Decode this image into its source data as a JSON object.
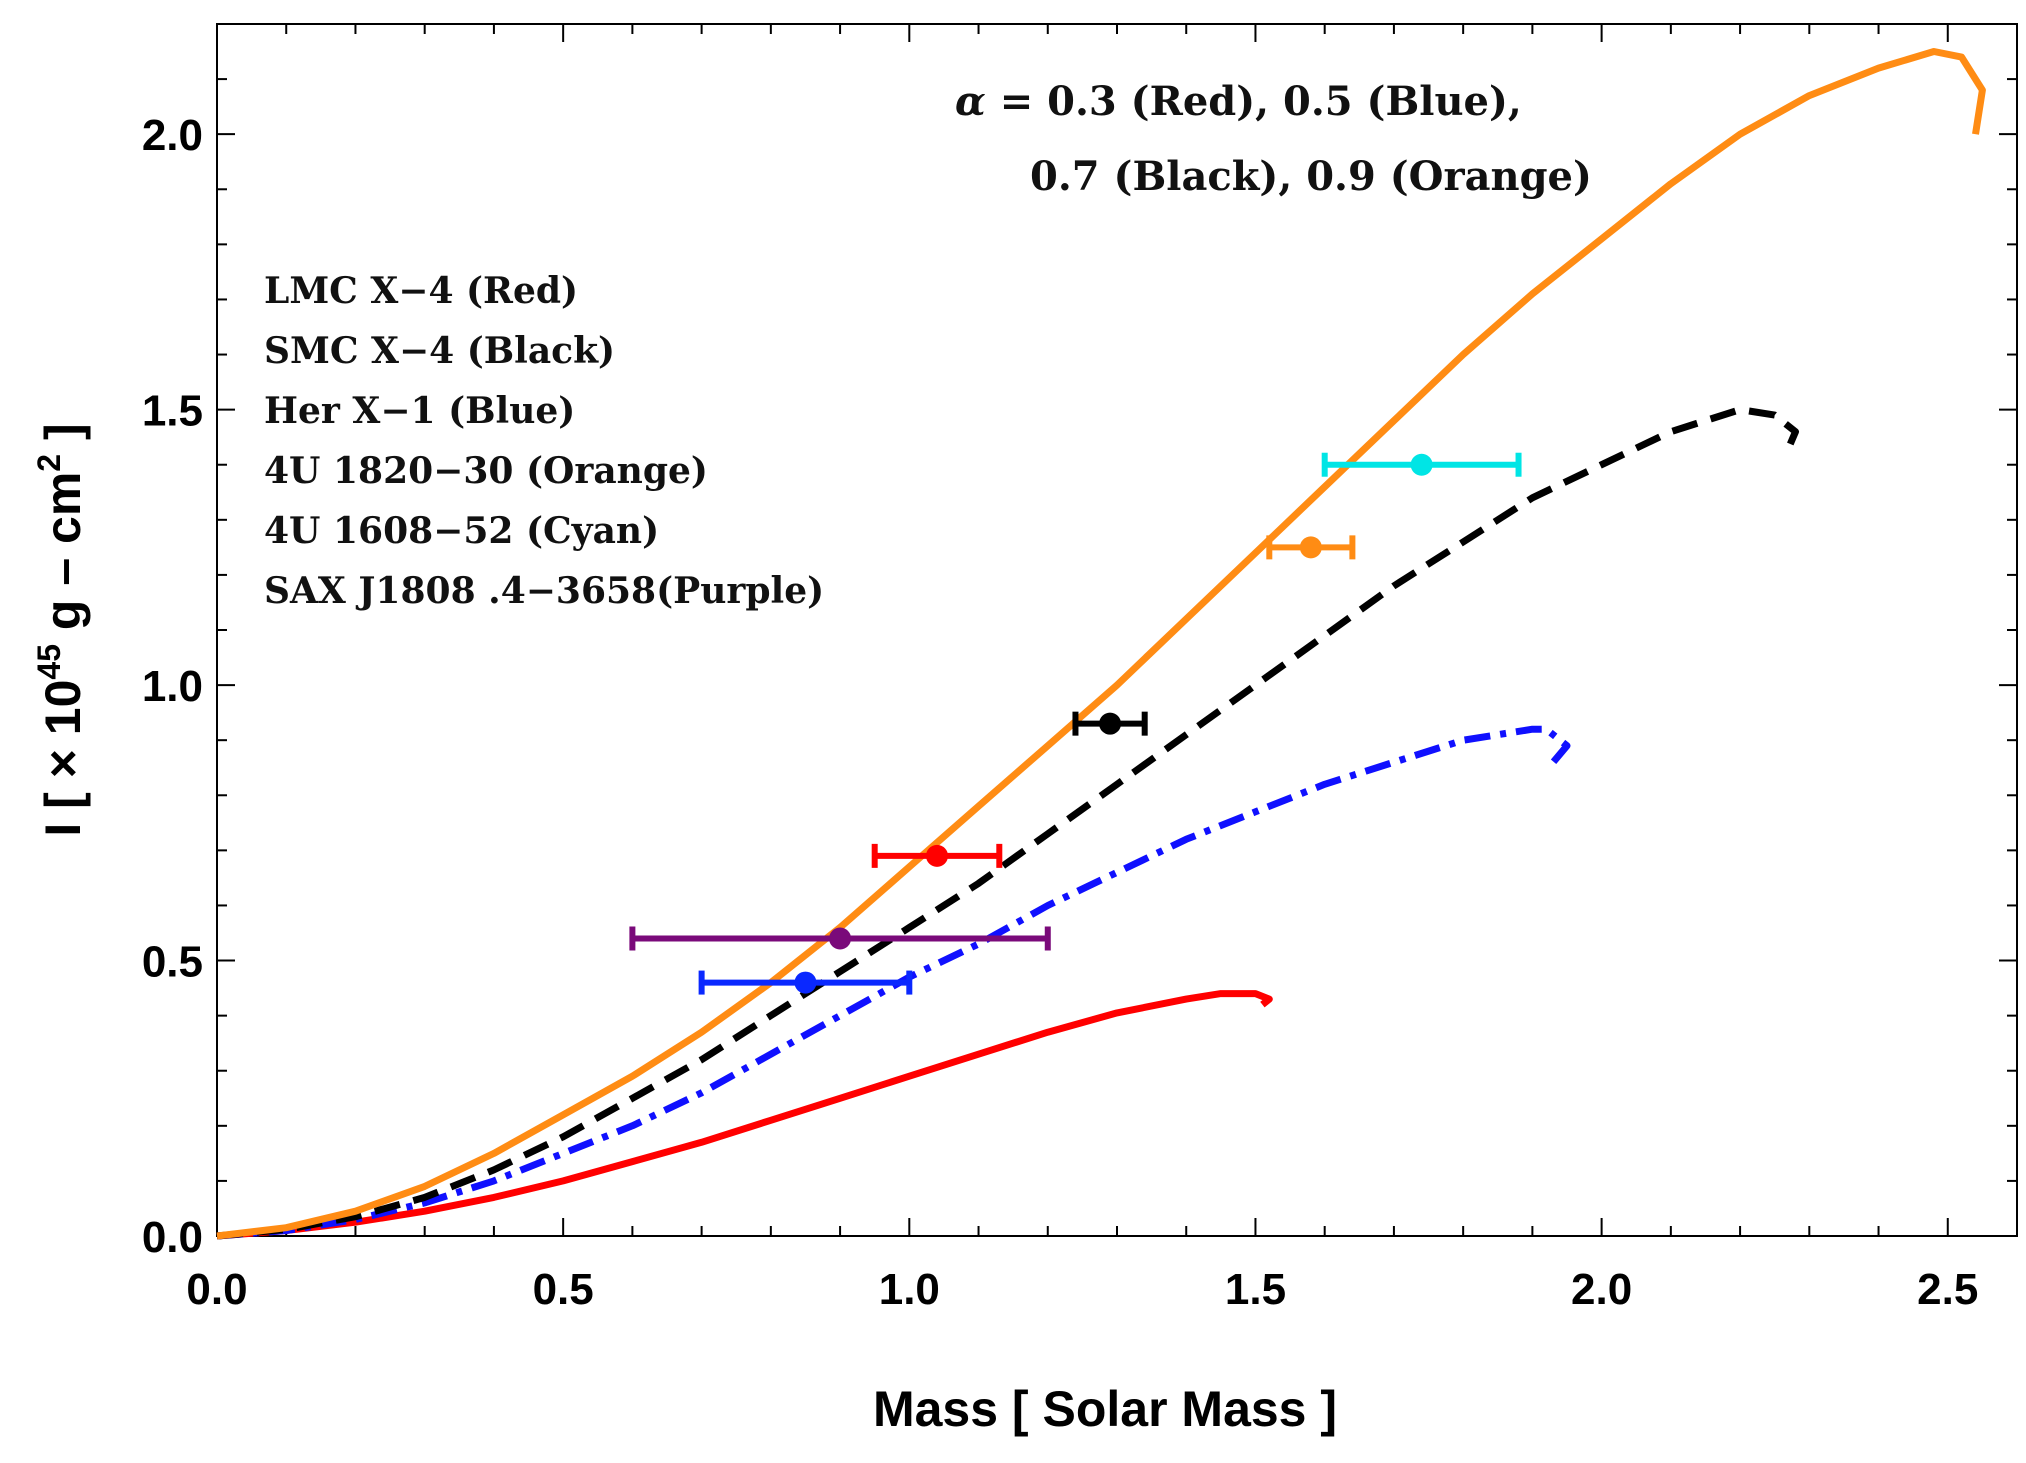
{
  "chart_data": {
    "type": "line",
    "title": "",
    "xlabel": "Mass [ Solar  Mass ]",
    "ylabel_parts": {
      "prefix": "I  [ × 10",
      "exponent": "45",
      "middle": " g – cm",
      "exponent2": "2",
      "suffix": " ]"
    },
    "xlim": [
      0.0,
      2.6
    ],
    "ylim": [
      0.0,
      2.2
    ],
    "x_ticks": [
      "0.0",
      "0.5",
      "1.0",
      "1.5",
      "2.0",
      "2.5"
    ],
    "x_tick_values": [
      0.0,
      0.5,
      1.0,
      1.5,
      2.0,
      2.5
    ],
    "y_ticks": [
      "0.0",
      "0.5",
      "1.0",
      "1.5",
      "2.0"
    ],
    "y_tick_values": [
      0.0,
      0.5,
      1.0,
      1.5,
      2.0
    ],
    "grid": false,
    "alpha_annotation": {
      "line1": {
        "symbol": "α",
        "text": " = 0.3 (Red), 0.5 (Blue),"
      },
      "line2": "0.7 (Black), 0.9 (Orange)"
    },
    "object_legend": [
      "LMC X−4 (Red)",
      "SMC X−4 (Black)",
      "Her X−1  (Blue)",
      "4U 1820−30 (Orange)",
      " 4U 1608−52 (Cyan)",
      " SAX  J1808 .4−3658(Purple)"
    ],
    "series": [
      {
        "name": "alpha 0.3",
        "color": "#ff0000",
        "dash": "solid",
        "points": [
          [
            0,
            0
          ],
          [
            0.1,
            0.01
          ],
          [
            0.2,
            0.025
          ],
          [
            0.3,
            0.045
          ],
          [
            0.4,
            0.07
          ],
          [
            0.5,
            0.1
          ],
          [
            0.6,
            0.135
          ],
          [
            0.7,
            0.17
          ],
          [
            0.8,
            0.21
          ],
          [
            0.9,
            0.25
          ],
          [
            1.0,
            0.29
          ],
          [
            1.1,
            0.33
          ],
          [
            1.2,
            0.37
          ],
          [
            1.3,
            0.405
          ],
          [
            1.4,
            0.43
          ],
          [
            1.45,
            0.44
          ],
          [
            1.5,
            0.44
          ],
          [
            1.52,
            0.43
          ],
          [
            1.51,
            0.42
          ]
        ]
      },
      {
        "name": "alpha 0.5",
        "color": "#1010ff",
        "dash": "dashdot",
        "points": [
          [
            0,
            0
          ],
          [
            0.1,
            0.01
          ],
          [
            0.2,
            0.03
          ],
          [
            0.3,
            0.06
          ],
          [
            0.4,
            0.1
          ],
          [
            0.5,
            0.15
          ],
          [
            0.6,
            0.2
          ],
          [
            0.7,
            0.26
          ],
          [
            0.8,
            0.33
          ],
          [
            0.9,
            0.4
          ],
          [
            1.0,
            0.47
          ],
          [
            1.1,
            0.53
          ],
          [
            1.2,
            0.6
          ],
          [
            1.3,
            0.66
          ],
          [
            1.4,
            0.72
          ],
          [
            1.5,
            0.77
          ],
          [
            1.6,
            0.82
          ],
          [
            1.7,
            0.86
          ],
          [
            1.8,
            0.9
          ],
          [
            1.9,
            0.92
          ],
          [
            1.92,
            0.92
          ],
          [
            1.95,
            0.89
          ],
          [
            1.93,
            0.86
          ]
        ]
      },
      {
        "name": "alpha 0.7",
        "color": "#000000",
        "dash": "dashed",
        "points": [
          [
            0,
            0
          ],
          [
            0.1,
            0.012
          ],
          [
            0.2,
            0.035
          ],
          [
            0.3,
            0.07
          ],
          [
            0.4,
            0.12
          ],
          [
            0.5,
            0.18
          ],
          [
            0.6,
            0.25
          ],
          [
            0.7,
            0.32
          ],
          [
            0.8,
            0.4
          ],
          [
            0.9,
            0.48
          ],
          [
            1.0,
            0.56
          ],
          [
            1.1,
            0.64
          ],
          [
            1.2,
            0.73
          ],
          [
            1.3,
            0.82
          ],
          [
            1.4,
            0.91
          ],
          [
            1.5,
            1.0
          ],
          [
            1.6,
            1.09
          ],
          [
            1.7,
            1.18
          ],
          [
            1.8,
            1.26
          ],
          [
            1.9,
            1.34
          ],
          [
            2.0,
            1.4
          ],
          [
            2.1,
            1.46
          ],
          [
            2.2,
            1.5
          ],
          [
            2.25,
            1.49
          ],
          [
            2.28,
            1.46
          ],
          [
            2.27,
            1.43
          ]
        ]
      },
      {
        "name": "alpha 0.9",
        "color": "#ff8c14",
        "dash": "solid",
        "points": [
          [
            0,
            0
          ],
          [
            0.1,
            0.015
          ],
          [
            0.2,
            0.045
          ],
          [
            0.3,
            0.09
          ],
          [
            0.4,
            0.15
          ],
          [
            0.5,
            0.22
          ],
          [
            0.6,
            0.29
          ],
          [
            0.7,
            0.37
          ],
          [
            0.8,
            0.46
          ],
          [
            0.9,
            0.56
          ],
          [
            1.0,
            0.67
          ],
          [
            1.1,
            0.78
          ],
          [
            1.2,
            0.89
          ],
          [
            1.3,
            1.0
          ],
          [
            1.4,
            1.12
          ],
          [
            1.5,
            1.24
          ],
          [
            1.6,
            1.36
          ],
          [
            1.7,
            1.48
          ],
          [
            1.8,
            1.6
          ],
          [
            1.9,
            1.71
          ],
          [
            2.0,
            1.81
          ],
          [
            2.1,
            1.91
          ],
          [
            2.2,
            2.0
          ],
          [
            2.3,
            2.07
          ],
          [
            2.4,
            2.12
          ],
          [
            2.48,
            2.15
          ],
          [
            2.52,
            2.14
          ],
          [
            2.55,
            2.08
          ],
          [
            2.54,
            2.0
          ]
        ]
      }
    ],
    "observations": [
      {
        "name": "LMC X-4",
        "color": "#ff0000",
        "x": 1.04,
        "y": 0.69,
        "xerr": [
          0.95,
          1.13
        ]
      },
      {
        "name": "SMC X-4",
        "color": "#000000",
        "x": 1.29,
        "y": 0.93,
        "xerr": [
          1.24,
          1.34
        ]
      },
      {
        "name": "Her X-1",
        "color": "#0a28ff",
        "x": 0.85,
        "y": 0.46,
        "xerr": [
          0.7,
          1.0
        ]
      },
      {
        "name": "4U 1820-30",
        "color": "#ff8c14",
        "x": 1.58,
        "y": 1.25,
        "xerr": [
          1.52,
          1.64
        ]
      },
      {
        "name": "4U 1608-52",
        "color": "#00e5e5",
        "x": 1.74,
        "y": 1.4,
        "xerr": [
          1.6,
          1.88
        ]
      },
      {
        "name": "SAX J1808.4-3658",
        "color": "#7a0a7a",
        "x": 0.9,
        "y": 0.54,
        "xerr": [
          0.6,
          1.2
        ]
      }
    ]
  }
}
